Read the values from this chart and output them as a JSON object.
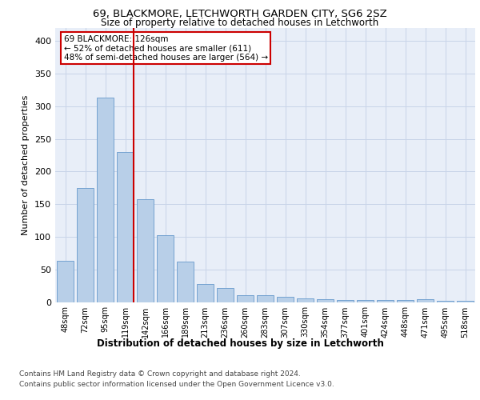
{
  "title1": "69, BLACKMORE, LETCHWORTH GARDEN CITY, SG6 2SZ",
  "title2": "Size of property relative to detached houses in Letchworth",
  "xlabel": "Distribution of detached houses by size in Letchworth",
  "ylabel": "Number of detached properties",
  "categories": [
    "48sqm",
    "72sqm",
    "95sqm",
    "119sqm",
    "142sqm",
    "166sqm",
    "189sqm",
    "213sqm",
    "236sqm",
    "260sqm",
    "283sqm",
    "307sqm",
    "330sqm",
    "354sqm",
    "377sqm",
    "401sqm",
    "424sqm",
    "448sqm",
    "471sqm",
    "495sqm",
    "518sqm"
  ],
  "values": [
    63,
    175,
    313,
    230,
    157,
    102,
    62,
    27,
    22,
    10,
    10,
    8,
    6,
    4,
    3,
    3,
    3,
    3,
    4,
    2,
    2
  ],
  "bar_color": "#b8cfe8",
  "bar_edge_color": "#6699cc",
  "vline_x_index": 3,
  "vline_color": "#cc0000",
  "annotation_text": "69 BLACKMORE: 126sqm\n← 52% of detached houses are smaller (611)\n48% of semi-detached houses are larger (564) →",
  "annotation_box_color": "#ffffff",
  "annotation_box_edge": "#cc0000",
  "ylim": [
    0,
    420
  ],
  "yticks": [
    0,
    50,
    100,
    150,
    200,
    250,
    300,
    350,
    400
  ],
  "grid_color": "#c8d4e8",
  "bg_color": "#e8eef8",
  "footer1": "Contains HM Land Registry data © Crown copyright and database right 2024.",
  "footer2": "Contains public sector information licensed under the Open Government Licence v3.0."
}
